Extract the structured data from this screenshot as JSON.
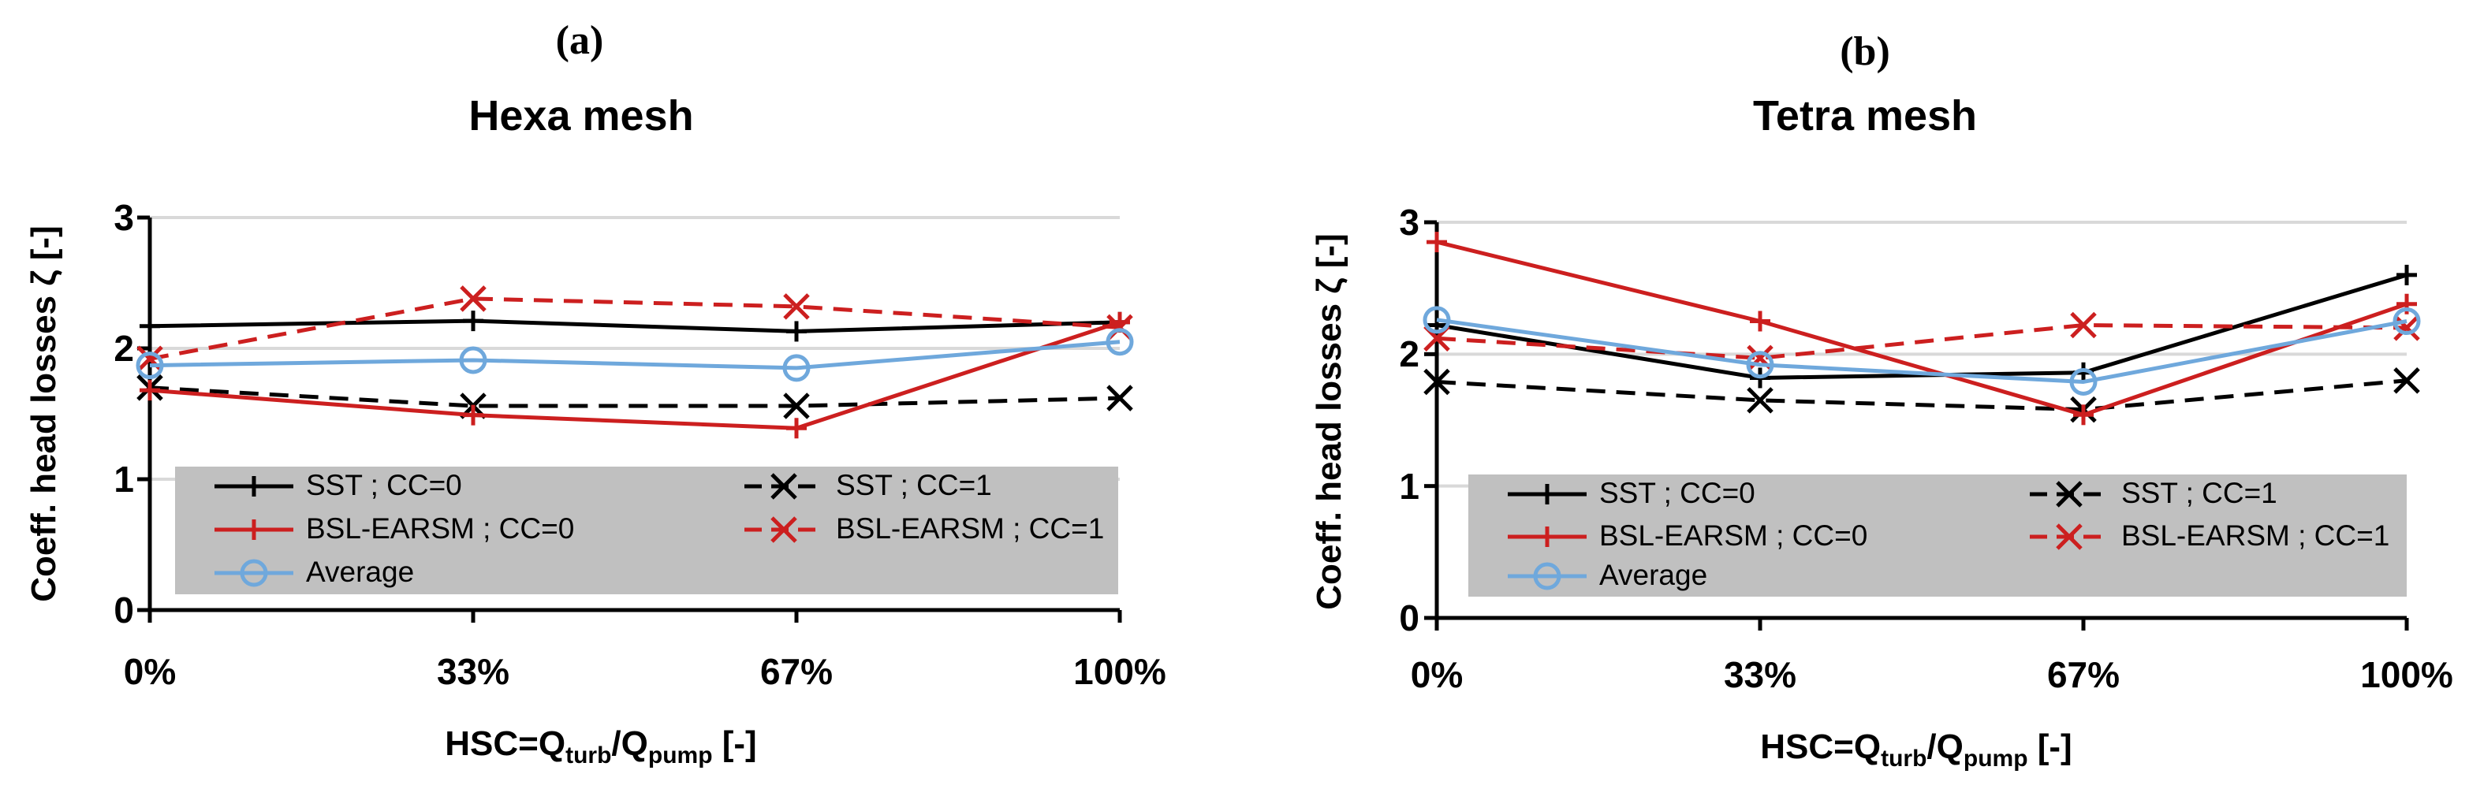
{
  "colors": {
    "sst": "#000000",
    "bsl": "#cc1f1f",
    "avg": "#6fa8dc",
    "legend_bg": "#c0c0c0",
    "grid": "#d9d9d9"
  },
  "chart_data": [
    {
      "panel_label": "(a)",
      "type": "line",
      "title": "Hexa mesh",
      "categories": [
        "0%",
        "33%",
        "67%",
        "100%"
      ],
      "xlabel_main": "HSC=Q",
      "xlabel_sub1": "turb",
      "xlabel_mid": "/Q",
      "xlabel_sub2": "pump",
      "xlabel_end": " [-]",
      "ylabel": "Coeff. head losses ζ [-]",
      "ylim": [
        0,
        3
      ],
      "yticks": [
        "0",
        "1",
        "2",
        "3"
      ],
      "grid": true,
      "legend_position": "bottom",
      "series": [
        {
          "name": "SST ; CC=0",
          "color_key": "sst",
          "dash": "solid",
          "marker": "plus",
          "values": [
            2.17,
            2.21,
            2.13,
            2.2
          ]
        },
        {
          "name": "SST ; CC=1",
          "color_key": "sst",
          "dash": "dash",
          "marker": "x",
          "values": [
            1.7,
            1.56,
            1.56,
            1.62
          ]
        },
        {
          "name": "BSL-EARSM ; CC=0",
          "color_key": "bsl",
          "dash": "solid",
          "marker": "plus",
          "values": [
            1.68,
            1.49,
            1.39,
            2.2
          ]
        },
        {
          "name": "BSL-EARSM ; CC=1",
          "color_key": "bsl",
          "dash": "dash",
          "marker": "x",
          "values": [
            1.92,
            2.38,
            2.32,
            2.16
          ]
        },
        {
          "name": "Average",
          "color_key": "avg",
          "dash": "solid",
          "marker": "circle",
          "values": [
            1.87,
            1.91,
            1.85,
            2.05
          ]
        }
      ]
    },
    {
      "panel_label": "(b)",
      "type": "line",
      "title": "Tetra mesh",
      "categories": [
        "0%",
        "33%",
        "67%",
        "100%"
      ],
      "xlabel_main": "HSC=Q",
      "xlabel_sub1": "turb",
      "xlabel_mid": "/Q",
      "xlabel_sub2": "pump",
      "xlabel_end": " [-]",
      "ylabel": "Coeff. head losses ζ [-]",
      "ylim": [
        0,
        3
      ],
      "yticks": [
        "0",
        "1",
        "2",
        "3"
      ],
      "grid": true,
      "legend_position": "bottom",
      "series": [
        {
          "name": "SST ; CC=0",
          "color_key": "sst",
          "dash": "solid",
          "marker": "plus",
          "values": [
            2.22,
            1.82,
            1.86,
            2.6
          ]
        },
        {
          "name": "SST ; CC=1",
          "color_key": "sst",
          "dash": "dash",
          "marker": "x",
          "values": [
            1.79,
            1.65,
            1.58,
            1.8
          ]
        },
        {
          "name": "BSL-EARSM ; CC=0",
          "color_key": "bsl",
          "dash": "solid",
          "marker": "plus",
          "values": [
            2.85,
            2.25,
            1.54,
            2.38
          ]
        },
        {
          "name": "BSL-EARSM ; CC=1",
          "color_key": "bsl",
          "dash": "dash",
          "marker": "x",
          "values": [
            2.12,
            1.97,
            2.22,
            2.2
          ]
        },
        {
          "name": "Average",
          "color_key": "avg",
          "dash": "solid",
          "marker": "circle",
          "values": [
            2.26,
            1.92,
            1.79,
            2.25
          ]
        }
      ]
    }
  ]
}
